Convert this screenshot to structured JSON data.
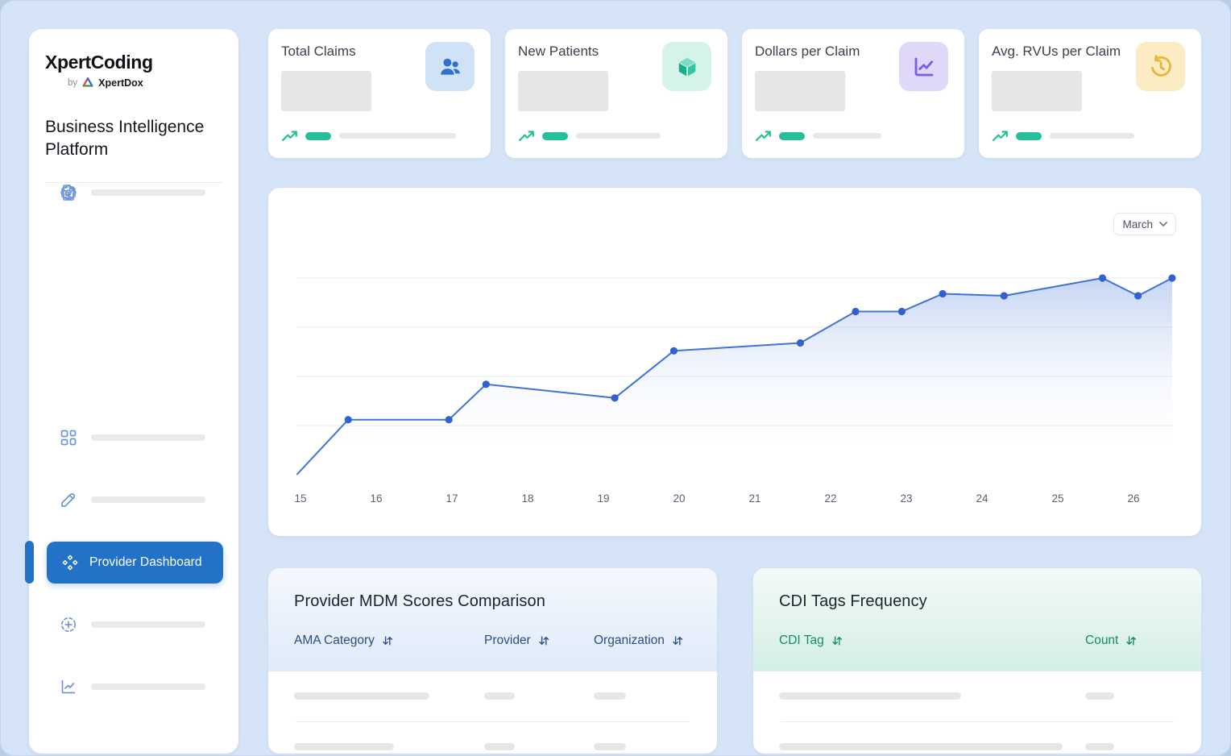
{
  "brand": {
    "name": "XpertCoding",
    "by": "by",
    "company": "XpertDox",
    "logo_icon": "xpertdox-triangle-logo",
    "logo_colors": [
      "#d9463e",
      "#3f9e4d",
      "#2b6fc4"
    ]
  },
  "sidebar": {
    "title": "Business Intelligence Platform",
    "items": [
      {
        "icon": "dashboard-grid-icon",
        "label": null,
        "skeleton": true
      },
      {
        "icon": "pencil-icon",
        "label": null,
        "skeleton": true
      },
      {
        "icon": "add-circle-dashed-icon",
        "label": null,
        "skeleton": true
      },
      {
        "icon": "line-chart-icon",
        "label": null,
        "skeleton": true
      },
      {
        "icon": "cube-outline-icon",
        "label": null,
        "skeleton": true
      },
      {
        "icon": "diamonds-icon",
        "label": "Provider Dashboard",
        "active": true
      },
      {
        "icon": "document-search-icon",
        "label": null,
        "skeleton": true
      },
      {
        "icon": "gear-icon",
        "label": null,
        "skeleton": true
      }
    ],
    "active_color": "#2472c8"
  },
  "stat_cards": [
    {
      "title": "Total Claims",
      "icon": "users-icon",
      "icon_bg": "#cfe2f6",
      "icon_color": "#2e6fd0",
      "trend_icon": "trend-up-icon",
      "trend_color": "#27bf9a",
      "value": null,
      "skeleton": true
    },
    {
      "title": "New Patients",
      "icon": "cube-icon",
      "icon_bg": "#d5f3e9",
      "icon_color": "#1db08f",
      "trend_icon": "trend-up-icon",
      "trend_color": "#27bf9a",
      "value": null,
      "skeleton": true
    },
    {
      "title": "Dollars per Claim",
      "icon": "chart-line-icon",
      "icon_bg": "#dfd8f9",
      "icon_color": "#7a5ce8",
      "trend_icon": "trend-up-icon",
      "trend_color": "#27bf9a",
      "value": null,
      "skeleton": true
    },
    {
      "title": "Avg. RVUs per Claim",
      "icon": "clock-history-icon",
      "icon_bg": "#fcecc4",
      "icon_color": "#e9b53a",
      "trend_icon": "trend-up-icon",
      "trend_color": "#27bf9a",
      "value": null,
      "skeleton": true
    }
  ],
  "trend_chart": {
    "period_selector": {
      "value": "March",
      "icon": "chevron-down-icon"
    }
  },
  "chart_data": {
    "type": "line",
    "title": "",
    "x": [
      14.95,
      15.63,
      16.96,
      17.45,
      19.15,
      19.93,
      21.6,
      22.33,
      22.94,
      23.48,
      24.29,
      25.59,
      26.06,
      26.51
    ],
    "values": [
      0,
      28,
      28,
      46,
      39,
      63,
      67,
      83,
      83,
      92,
      91,
      100,
      91,
      100
    ],
    "xticks": [
      15,
      16,
      17,
      18,
      19,
      20,
      21,
      22,
      23,
      24,
      25,
      26
    ],
    "xlabel": "",
    "ylabel": "",
    "ylim": [
      0,
      100
    ],
    "grid": true,
    "gridline_values": [
      25,
      50,
      75,
      100
    ],
    "legend": null,
    "line_color": "#3e73d8",
    "marker_color": "#3161d1",
    "first_point_has_marker": false
  },
  "tables": {
    "mdm": {
      "title": "Provider MDM Scores Comparison",
      "columns": [
        {
          "label": "AMA Category",
          "sort_icon": "sort-icon"
        },
        {
          "label": "Provider",
          "sort_icon": "sort-icon"
        },
        {
          "label": "Organization",
          "sort_icon": "sort-icon"
        }
      ],
      "header_text_color": "#2c4d82",
      "skeleton_rows": 2
    },
    "cdi": {
      "title": "CDI Tags Frequency",
      "columns": [
        {
          "label": "CDI Tag",
          "sort_icon": "sort-icon"
        },
        {
          "label": "Count",
          "sort_icon": "sort-icon"
        }
      ],
      "header_text_color": "#158a6e",
      "skeleton_rows": 2
    }
  }
}
